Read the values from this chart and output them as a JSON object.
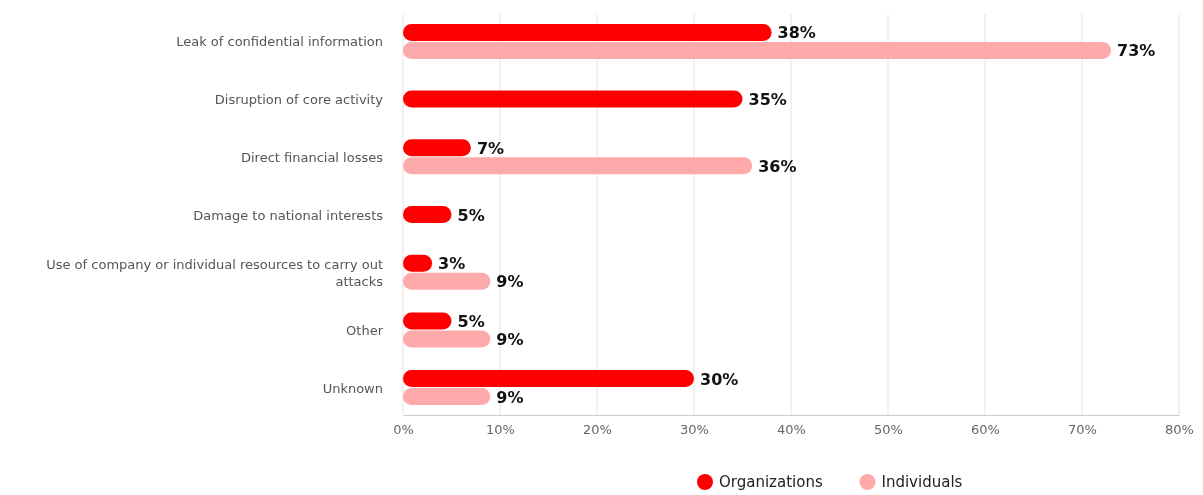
{
  "chart_data": {
    "type": "bar",
    "orientation": "horizontal",
    "categories": [
      "Leak of confidential information",
      "Disruption of core activity",
      "Direct financial losses",
      "Damage to national interests",
      "Use of company or individual resources to carry out attacks",
      "Other",
      "Unknown"
    ],
    "series": [
      {
        "name": "Organizations",
        "color": "#ff0000",
        "values": [
          38,
          35,
          7,
          5,
          3,
          5,
          30
        ],
        "value_labels": [
          "38%",
          "35%",
          "7%",
          "5%",
          "3%",
          "5%",
          "30%"
        ]
      },
      {
        "name": "Individuals",
        "color": "#ffaaaa",
        "values": [
          73,
          null,
          36,
          null,
          9,
          9,
          9
        ],
        "value_labels": [
          "73%",
          null,
          "36%",
          null,
          "9%",
          "9%",
          "9%"
        ]
      }
    ],
    "xlim": [
      0,
      80
    ],
    "xticks": [
      {
        "value": 0,
        "label": "0%"
      },
      {
        "value": 10,
        "label": "10%"
      },
      {
        "value": 20,
        "label": "20%"
      },
      {
        "value": 30,
        "label": "30%"
      },
      {
        "value": 40,
        "label": "40%"
      },
      {
        "value": 50,
        "label": "50%"
      },
      {
        "value": 60,
        "label": "60%"
      },
      {
        "value": 70,
        "label": "70%"
      },
      {
        "value": 80,
        "label": "80%"
      }
    ],
    "grid": "x",
    "legend": "bottom"
  }
}
